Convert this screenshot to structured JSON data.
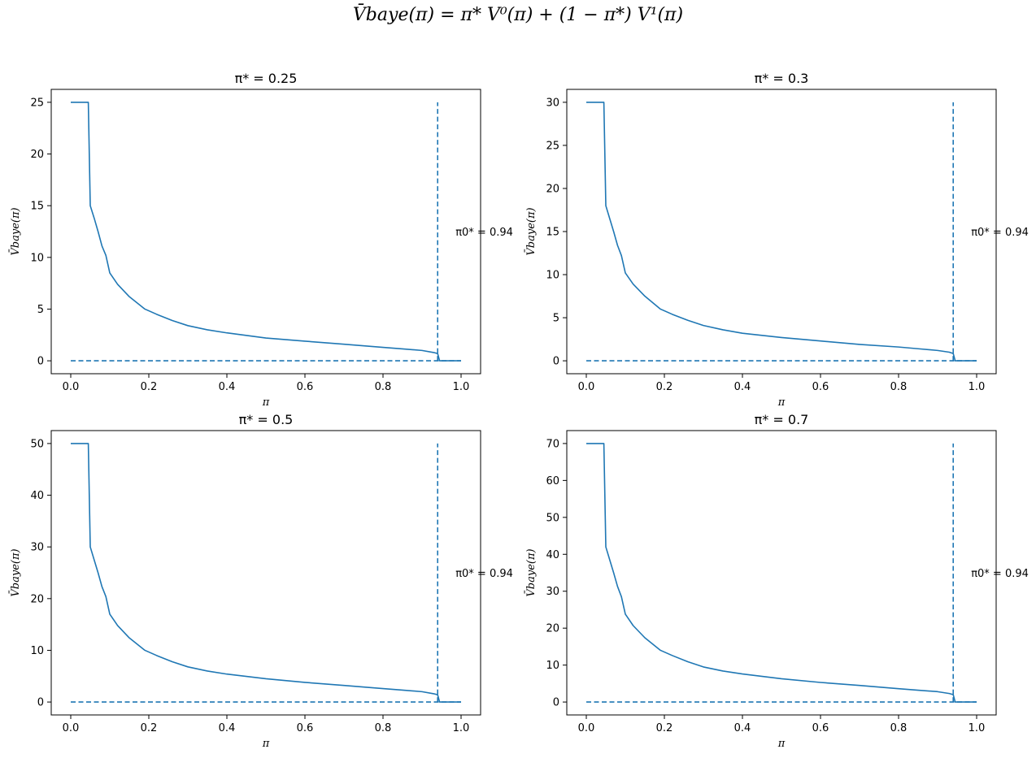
{
  "suptitle": "V̄baye(π) = π* V⁰(π) + (1 − π*) V¹(π)",
  "chart_data": [
    {
      "type": "line",
      "title": "π* = 0.25",
      "xlabel": "π",
      "ylabel": "V̄baye(π)",
      "xlim": [
        -0.05,
        1.05
      ],
      "ylim": [
        -1.25,
        26.25
      ],
      "xticks": [
        "0.0",
        "0.2",
        "0.4",
        "0.6",
        "0.8",
        "1.0"
      ],
      "yticks": [
        "0",
        "5",
        "10",
        "15",
        "20",
        "25"
      ],
      "annotation": "π0* = 0.94",
      "annotation_pos": [
        0.99,
        12.5
      ],
      "threshold": 0.94,
      "series": [
        {
          "style": "solid",
          "color": "#1f77b4",
          "x": [
            0,
            0.045,
            0.05,
            0.06,
            0.07,
            0.08,
            0.09,
            0.1,
            0.12,
            0.15,
            0.19,
            0.22,
            0.26,
            0.3,
            0.35,
            0.4,
            0.5,
            0.6,
            0.7,
            0.8,
            0.85,
            0.9,
            0.93,
            0.94,
            0.945,
            1.0
          ],
          "y": [
            25,
            25,
            15,
            13.8,
            12.5,
            11.1,
            10.2,
            8.5,
            7.4,
            6.2,
            5.0,
            4.5,
            3.9,
            3.4,
            3.0,
            2.7,
            2.2,
            1.9,
            1.6,
            1.3,
            1.15,
            1.0,
            0.8,
            0.7,
            0,
            0
          ]
        },
        {
          "style": "dashed",
          "color": "#1f77b4",
          "x": [
            0,
            1.0
          ],
          "y": [
            0,
            0
          ]
        },
        {
          "style": "dashed",
          "color": "#1f77b4",
          "x": [
            0.94,
            0.94
          ],
          "y": [
            0,
            25
          ]
        }
      ]
    },
    {
      "type": "line",
      "title": "π* = 0.3",
      "xlabel": "π",
      "ylabel": "V̄baye(π)",
      "xlim": [
        -0.05,
        1.05
      ],
      "ylim": [
        -1.5,
        31.5
      ],
      "xticks": [
        "0.0",
        "0.2",
        "0.4",
        "0.6",
        "0.8",
        "1.0"
      ],
      "yticks": [
        "0",
        "5",
        "10",
        "15",
        "20",
        "25",
        "30"
      ],
      "annotation": "π0* = 0.94",
      "annotation_pos": [
        0.99,
        15
      ],
      "threshold": 0.94,
      "series": [
        {
          "style": "solid",
          "color": "#1f77b4",
          "x": [
            0,
            0.045,
            0.05,
            0.06,
            0.07,
            0.08,
            0.09,
            0.1,
            0.12,
            0.15,
            0.19,
            0.22,
            0.26,
            0.3,
            0.35,
            0.4,
            0.5,
            0.6,
            0.7,
            0.8,
            0.85,
            0.9,
            0.93,
            0.94,
            0.945,
            1.0
          ],
          "y": [
            30,
            30,
            18,
            16.5,
            15,
            13.4,
            12.2,
            10.2,
            8.9,
            7.5,
            6.0,
            5.4,
            4.7,
            4.1,
            3.6,
            3.2,
            2.7,
            2.3,
            1.9,
            1.6,
            1.4,
            1.2,
            1.0,
            0.85,
            0,
            0
          ]
        },
        {
          "style": "dashed",
          "color": "#1f77b4",
          "x": [
            0,
            1.0
          ],
          "y": [
            0,
            0
          ]
        },
        {
          "style": "dashed",
          "color": "#1f77b4",
          "x": [
            0.94,
            0.94
          ],
          "y": [
            0,
            30
          ]
        }
      ]
    },
    {
      "type": "line",
      "title": "π* = 0.5",
      "xlabel": "π",
      "ylabel": "V̄baye(π)",
      "xlim": [
        -0.05,
        1.05
      ],
      "ylim": [
        -2.5,
        52.5
      ],
      "xticks": [
        "0.0",
        "0.2",
        "0.4",
        "0.6",
        "0.8",
        "1.0"
      ],
      "yticks": [
        "0",
        "10",
        "20",
        "30",
        "40",
        "50"
      ],
      "annotation": "π0* = 0.94",
      "annotation_pos": [
        0.99,
        25
      ],
      "threshold": 0.94,
      "series": [
        {
          "style": "solid",
          "color": "#1f77b4",
          "x": [
            0,
            0.045,
            0.05,
            0.06,
            0.07,
            0.08,
            0.09,
            0.1,
            0.12,
            0.15,
            0.19,
            0.22,
            0.26,
            0.3,
            0.35,
            0.4,
            0.5,
            0.6,
            0.7,
            0.8,
            0.85,
            0.9,
            0.93,
            0.94,
            0.945,
            1.0
          ],
          "y": [
            50,
            50,
            30,
            27.5,
            25,
            22.3,
            20.4,
            17,
            14.8,
            12.4,
            10,
            9,
            7.8,
            6.8,
            6.0,
            5.4,
            4.5,
            3.8,
            3.2,
            2.6,
            2.3,
            2.0,
            1.6,
            1.4,
            0,
            0
          ]
        },
        {
          "style": "dashed",
          "color": "#1f77b4",
          "x": [
            0,
            1.0
          ],
          "y": [
            0,
            0
          ]
        },
        {
          "style": "dashed",
          "color": "#1f77b4",
          "x": [
            0.94,
            0.94
          ],
          "y": [
            0,
            50
          ]
        }
      ]
    },
    {
      "type": "line",
      "title": "π* = 0.7",
      "xlabel": "π",
      "ylabel": "V̄baye(π)",
      "xlim": [
        -0.05,
        1.05
      ],
      "ylim": [
        -3.5,
        73.5
      ],
      "xticks": [
        "0.0",
        "0.2",
        "0.4",
        "0.6",
        "0.8",
        "1.0"
      ],
      "yticks": [
        "0",
        "10",
        "20",
        "30",
        "40",
        "50",
        "60",
        "70"
      ],
      "annotation": "π0* = 0.94",
      "annotation_pos": [
        0.99,
        35
      ],
      "threshold": 0.94,
      "series": [
        {
          "style": "solid",
          "color": "#1f77b4",
          "x": [
            0,
            0.045,
            0.05,
            0.06,
            0.07,
            0.08,
            0.09,
            0.1,
            0.12,
            0.15,
            0.19,
            0.22,
            0.26,
            0.3,
            0.35,
            0.4,
            0.5,
            0.6,
            0.7,
            0.8,
            0.85,
            0.9,
            0.93,
            0.94,
            0.945,
            1.0
          ],
          "y": [
            70,
            70,
            42,
            38.5,
            35,
            31.3,
            28.5,
            23.8,
            20.7,
            17.4,
            14,
            12.6,
            10.9,
            9.5,
            8.4,
            7.6,
            6.3,
            5.3,
            4.5,
            3.6,
            3.2,
            2.8,
            2.3,
            2.0,
            0,
            0
          ]
        },
        {
          "style": "dashed",
          "color": "#1f77b4",
          "x": [
            0,
            1.0
          ],
          "y": [
            0,
            0
          ]
        },
        {
          "style": "dashed",
          "color": "#1f77b4",
          "x": [
            0.94,
            0.94
          ],
          "y": [
            0,
            70
          ]
        }
      ]
    }
  ]
}
